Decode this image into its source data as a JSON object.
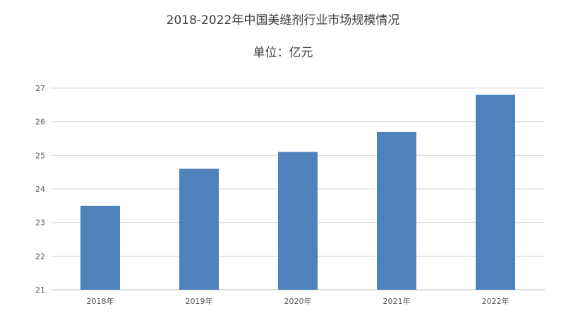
{
  "chart_data": {
    "type": "bar",
    "title": "2018-2022年中国美缝剂行业市场规模情况",
    "subtitle": "单位：亿元",
    "categories": [
      "2018年",
      "2019年",
      "2020年",
      "2021年",
      "2022年"
    ],
    "values": [
      23.5,
      24.6,
      25.1,
      25.7,
      26.8
    ],
    "ylim": [
      21,
      27
    ],
    "yticks": [
      "21",
      "22",
      "23",
      "24",
      "25",
      "26",
      "27"
    ],
    "bar_color": "#4f81bd",
    "grid": true,
    "legend": "none"
  }
}
